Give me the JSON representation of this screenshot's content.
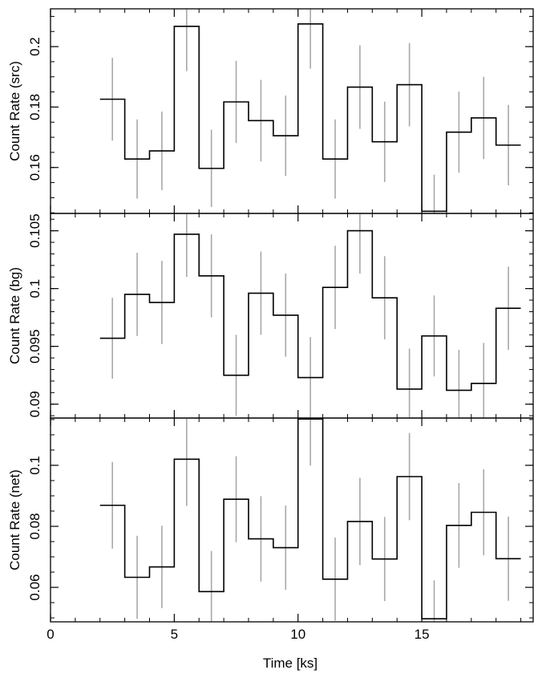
{
  "chart_data": [
    {
      "type": "line",
      "ylabel": "Count Rate (src)",
      "ylim": [
        0.1448,
        0.2125
      ],
      "yticks": [
        0.16,
        0.18,
        0.2
      ],
      "yminor_step": 0.005,
      "bin_edges": [
        2.0,
        3.0,
        4.0,
        5.0,
        6.0,
        7.0,
        8.0,
        9.0,
        10.0,
        11.0,
        12.0,
        13.0,
        14.0,
        15.0,
        16.0,
        17.0,
        18.0,
        19.0
      ],
      "x": [
        2.5,
        3.5,
        4.5,
        5.5,
        6.5,
        7.5,
        8.5,
        9.5,
        10.5,
        11.5,
        12.5,
        13.5,
        14.5,
        15.5,
        16.5,
        17.5,
        18.5
      ],
      "values": [
        0.1826,
        0.1628,
        0.1655,
        0.2067,
        0.1597,
        0.1817,
        0.1755,
        0.1705,
        0.2075,
        0.1628,
        0.1866,
        0.1685,
        0.1874,
        0.1455,
        0.1717,
        0.1764,
        0.1674
      ],
      "errors": [
        0.0137,
        0.0131,
        0.013,
        0.0148,
        0.0128,
        0.0136,
        0.0135,
        0.0133,
        0.0148,
        0.0131,
        0.0138,
        0.0133,
        0.0138,
        0.0121,
        0.0134,
        0.0136,
        0.0133
      ]
    },
    {
      "type": "line",
      "ylabel": "Count Rate (bg)",
      "ylim": [
        0.0888,
        0.1065
      ],
      "yticks": [
        0.09,
        0.095,
        0.1,
        0.105
      ],
      "yminor_step": 0.001,
      "bin_edges": [
        2.0,
        3.0,
        4.0,
        5.0,
        6.0,
        7.0,
        8.0,
        9.0,
        10.0,
        11.0,
        12.0,
        13.0,
        14.0,
        15.0,
        16.0,
        17.0,
        18.0,
        19.0
      ],
      "x": [
        2.5,
        3.5,
        4.5,
        5.5,
        6.5,
        7.5,
        8.5,
        9.5,
        10.5,
        11.5,
        12.5,
        13.5,
        14.5,
        15.5,
        16.5,
        17.5,
        18.5
      ],
      "values": [
        0.0957,
        0.0995,
        0.0988,
        0.1047,
        0.1011,
        0.0925,
        0.0996,
        0.0977,
        0.0923,
        0.1001,
        0.105,
        0.0992,
        0.0913,
        0.0959,
        0.0912,
        0.0918,
        0.0983
      ],
      "errors": [
        0.0035,
        0.0036,
        0.0036,
        0.0037,
        0.0036,
        0.0035,
        0.0036,
        0.0036,
        0.0035,
        0.0036,
        0.0037,
        0.0036,
        0.0035,
        0.0035,
        0.0035,
        0.0035,
        0.0036
      ]
    },
    {
      "type": "line",
      "ylabel": "Count Rate (net)",
      "ylim": [
        0.0487,
        0.1155
      ],
      "yticks": [
        0.06,
        0.08,
        0.1
      ],
      "yminor_step": 0.005,
      "xlabel": "Time [ks]",
      "xlim": [
        0,
        19.5
      ],
      "xticks": [
        0,
        5,
        10,
        15
      ],
      "xminor_step": 1,
      "bin_edges": [
        2.0,
        3.0,
        4.0,
        5.0,
        6.0,
        7.0,
        8.0,
        9.0,
        10.0,
        11.0,
        12.0,
        13.0,
        14.0,
        15.0,
        16.0,
        17.0,
        18.0,
        19.0
      ],
      "x": [
        2.5,
        3.5,
        4.5,
        5.5,
        6.5,
        7.5,
        8.5,
        9.5,
        10.5,
        11.5,
        12.5,
        13.5,
        14.5,
        15.5,
        16.5,
        17.5,
        18.5
      ],
      "values": [
        0.0869,
        0.0633,
        0.0667,
        0.102,
        0.0586,
        0.0889,
        0.0759,
        0.073,
        0.1152,
        0.0627,
        0.0816,
        0.0693,
        0.0963,
        0.0497,
        0.0803,
        0.0846,
        0.0694
      ],
      "errors": [
        0.0142,
        0.0136,
        0.0135,
        0.0153,
        0.0133,
        0.0141,
        0.014,
        0.0138,
        0.0153,
        0.0136,
        0.0143,
        0.0138,
        0.0143,
        0.0126,
        0.0139,
        0.0141,
        0.0138
      ]
    }
  ]
}
